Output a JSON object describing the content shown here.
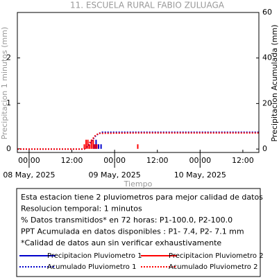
{
  "chart_data": {
    "type": "precipitation",
    "title": "11. ESCUELA RURAL FABIO ZULUAGA",
    "y_label": "Precipitacion 1 minutos (mm)",
    "y2_label": "Precipitacion Acumulada (mm)",
    "x_label": "Tiempo",
    "xlim": [
      -3.3,
      64.5
    ],
    "xticks": [
      {
        "value": 0,
        "label": "00:00"
      },
      {
        "value": 12,
        "label": "12:00"
      },
      {
        "value": 24,
        "label": "00:00"
      },
      {
        "value": 36,
        "label": "12:00"
      },
      {
        "value": 48,
        "label": "00:00"
      },
      {
        "value": 60,
        "label": "12:00"
      }
    ],
    "xdate_ticks": [
      {
        "value": 0,
        "label": "08 May, 2025"
      },
      {
        "value": 24,
        "label": "09 May, 2025"
      },
      {
        "value": 48,
        "label": "10 May, 2025"
      }
    ],
    "ylim": [
      -0.08,
      3
    ],
    "yticks": [
      0,
      1,
      2
    ],
    "y2lim": [
      -1.5,
      60
    ],
    "y2ticks": [
      0,
      20,
      40,
      60
    ],
    "series": [
      {
        "name": "Precipitacion Pluviometro 1",
        "color": "#0000cc",
        "kind": "bar",
        "x": [
          18.2,
          18.8,
          19.5,
          20.2
        ],
        "values": [
          0.1,
          0.2,
          0.1,
          0.1
        ]
      },
      {
        "name": "Precipitacion Pluviometro 2",
        "color": "#ff0000",
        "kind": "bar",
        "x": [
          15.5,
          16,
          16.5,
          17,
          17.5,
          18,
          18.5,
          19,
          30.5
        ],
        "values": [
          0.1,
          0.2,
          0.2,
          0.1,
          0.2,
          0.2,
          0.1,
          0.1,
          0.1
        ]
      },
      {
        "name": "Acumulado Pluviometro 1",
        "color": "#0000cc",
        "kind": "line",
        "dash": "dotted",
        "axis": "y2",
        "x": [
          -3.3,
          15.5,
          16.5,
          17.5,
          18.5,
          19.5,
          20.5,
          64.5
        ],
        "values": [
          0,
          0,
          1.5,
          3.5,
          5.5,
          6.8,
          7.4,
          7.4
        ]
      },
      {
        "name": "Acumulado Pluviometro 2",
        "color": "#ff0000",
        "kind": "line",
        "dash": "dotted",
        "axis": "y2",
        "x": [
          -3.3,
          15.5,
          16.5,
          17.5,
          18.5,
          19.5,
          30.5,
          64.5
        ],
        "values": [
          0,
          0,
          1.8,
          3.8,
          5.8,
          6.9,
          7.1,
          7.1
        ]
      }
    ],
    "notes": [
      "Esta estacion tiene 2 pluviometros para mejor calidad de datos",
      "Resolucion temporal: 1 minutos",
      "% Datos transmitidos* en 72 horas: P1-100.0, P2-100.0",
      "PPT Acumulada en datos disponibles : P1-  7.4, P2-  7.1 mm",
      "*Calidad de datos aun sin verificar exhaustivamente"
    ]
  }
}
